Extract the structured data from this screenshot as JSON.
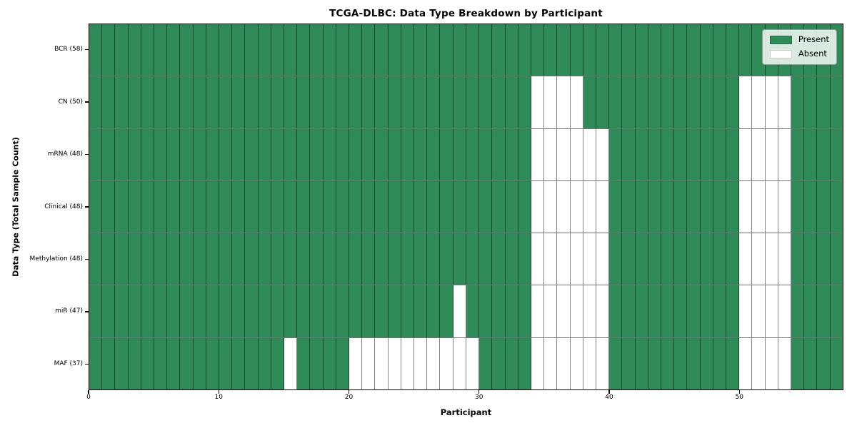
{
  "chart_data": {
    "type": "heatmap",
    "title": "TCGA-DLBC: Data Type Breakdown by Participant",
    "xlabel": "Participant",
    "ylabel": "Data Type (Total Sample Count)",
    "x_ticks": [
      0,
      10,
      20,
      30,
      40,
      50
    ],
    "x_range": [
      0,
      58
    ],
    "n_participants": 58,
    "cell_edges": true,
    "colors": {
      "present": "#2e8b57",
      "absent": "#ffffff",
      "cell_edge": "rgba(0,0,0,0.5)",
      "spine": "#000000"
    },
    "legend": {
      "position": "upper right",
      "entries": [
        {
          "label": "Present",
          "color": "#2e8b57"
        },
        {
          "label": "Absent",
          "color": "#ffffff"
        }
      ]
    },
    "rows": [
      {
        "label": "BCR (58)",
        "total_samples": 58,
        "absent_participants": []
      },
      {
        "label": "CN (50)",
        "total_samples": 50,
        "absent_participants": [
          34,
          35,
          36,
          37,
          50,
          51,
          52,
          53
        ]
      },
      {
        "label": "mRNA (48)",
        "total_samples": 48,
        "absent_participants": [
          34,
          35,
          36,
          37,
          38,
          39,
          50,
          51,
          52,
          53
        ]
      },
      {
        "label": "Clinical (48)",
        "total_samples": 48,
        "absent_participants": [
          34,
          35,
          36,
          37,
          38,
          39,
          50,
          51,
          52,
          53
        ]
      },
      {
        "label": "Methylation (48)",
        "total_samples": 48,
        "absent_participants": [
          34,
          35,
          36,
          37,
          38,
          39,
          50,
          51,
          52,
          53
        ]
      },
      {
        "label": "miR (47)",
        "total_samples": 47,
        "absent_participants": [
          28,
          34,
          35,
          36,
          37,
          38,
          39,
          50,
          51,
          52,
          53
        ]
      },
      {
        "label": "MAF (37)",
        "total_samples": 37,
        "absent_participants": [
          15,
          20,
          21,
          22,
          23,
          24,
          25,
          26,
          27,
          28,
          29,
          34,
          35,
          36,
          37,
          38,
          39,
          50,
          51,
          52,
          53
        ]
      }
    ]
  }
}
